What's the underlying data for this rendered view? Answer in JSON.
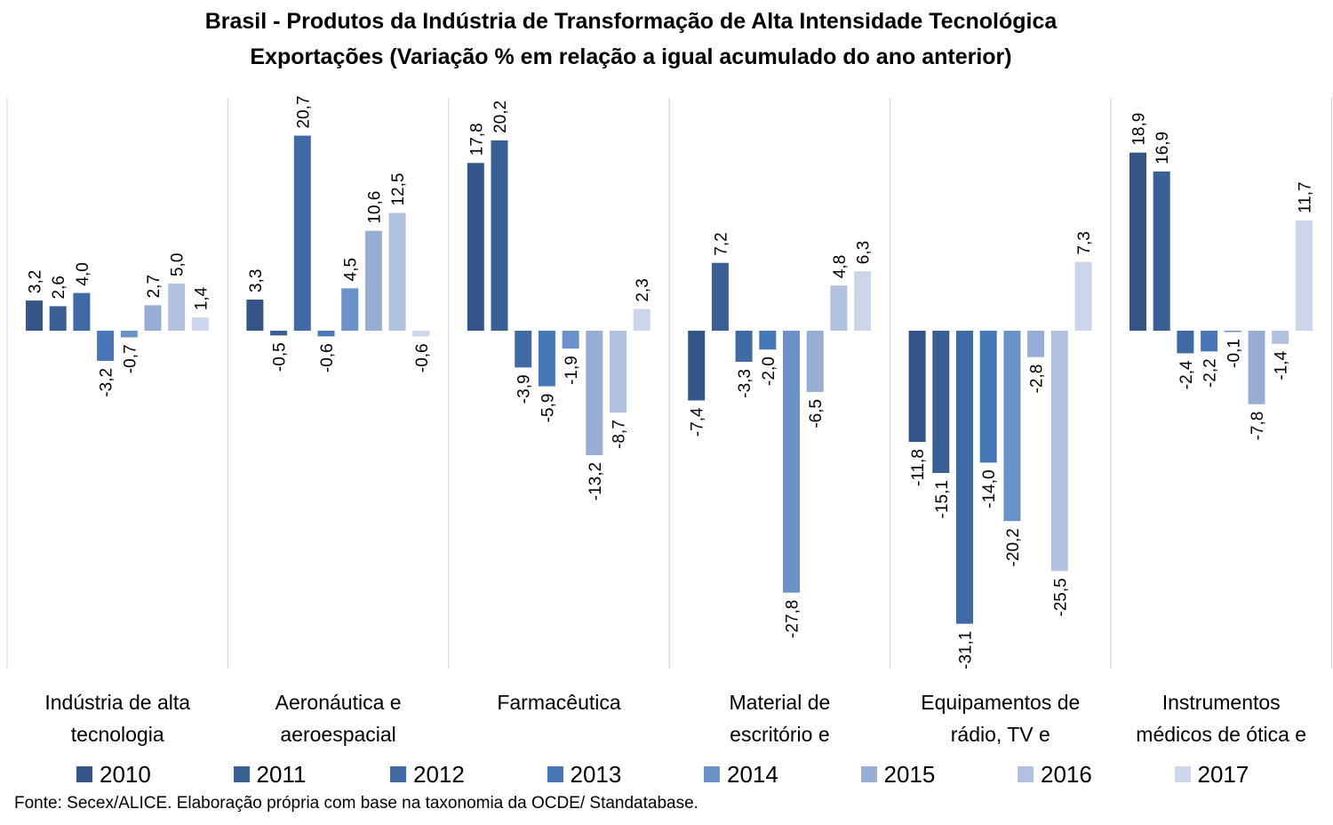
{
  "chart_data": {
    "type": "bar",
    "title": "Brasil - Produtos da Indústria de Transformação de Alta Intensidade Tecnológica",
    "subtitle": "Exportações (Variação % em relação a igual acumulado do ano anterior)",
    "categories": [
      [
        "Indústria de alta",
        "tecnologia"
      ],
      [
        "Aeronáutica e",
        "aeroespacial"
      ],
      [
        "Farmacêutica"
      ],
      [
        "Material de",
        "escritório e"
      ],
      [
        "Equipamentos de",
        "rádio, TV e"
      ],
      [
        "Instrumentos",
        "médicos de ótica e"
      ]
    ],
    "series": [
      {
        "name": "2010",
        "color": "#345587",
        "values": [
          3.2,
          3.3,
          17.8,
          -7.4,
          -11.8,
          18.9
        ]
      },
      {
        "name": "2011",
        "color": "#3a5f95",
        "values": [
          2.6,
          -0.5,
          20.2,
          7.2,
          -15.1,
          16.9
        ]
      },
      {
        "name": "2012",
        "color": "#3f6aa4",
        "values": [
          4.0,
          20.7,
          -3.9,
          -3.3,
          -31.1,
          -2.4
        ]
      },
      {
        "name": "2013",
        "color": "#4877b8",
        "values": [
          -3.2,
          -0.6,
          -5.9,
          -2.0,
          -14.0,
          -2.2
        ]
      },
      {
        "name": "2014",
        "color": "#6b93c9",
        "values": [
          -0.7,
          4.5,
          -1.9,
          -27.8,
          -20.2,
          -0.1
        ]
      },
      {
        "name": "2015",
        "color": "#97add3",
        "values": [
          2.7,
          10.6,
          -13.2,
          -6.5,
          -2.8,
          -7.8
        ]
      },
      {
        "name": "2016",
        "color": "#b3c1e0",
        "values": [
          5.0,
          12.5,
          -8.7,
          4.8,
          -25.5,
          -1.4
        ]
      },
      {
        "name": "2017",
        "color": "#cdd5ea",
        "values": [
          1.4,
          -0.6,
          2.3,
          6.3,
          7.3,
          11.7
        ]
      }
    ],
    "value_labels": [
      [
        "3,2",
        "3,3",
        "17,8",
        "-7,4",
        "-11,8",
        "18,9"
      ],
      [
        "2,6",
        "-0,5",
        "20,2",
        "7,2",
        "-15,1",
        "16,9"
      ],
      [
        "4,0",
        "20,7",
        "-3,9",
        "-3,3",
        "-31,1",
        "-2,4"
      ],
      [
        "-3,2",
        "-0,6",
        "-5,9",
        "-2,0",
        "-14,0",
        "-2,2"
      ],
      [
        "-0,7",
        "4,5",
        "-1,9",
        "-27,8",
        "-20,2",
        "-0,1"
      ],
      [
        "2,7",
        "10,6",
        "-13,2",
        "-6,5",
        "-2,8",
        "-7,8"
      ],
      [
        "5,0",
        "12,5",
        "-8,7",
        "4,8",
        "-25,5",
        "-1,4"
      ],
      [
        "1,4",
        "-0,6",
        "2,3",
        "6,3",
        "7,3",
        "11,7"
      ]
    ],
    "legend_position": "bottom",
    "grid": false,
    "source": "Fonte: Secex/ALICE. Elaboração própria com base na taxonomia da OCDE/ Standatabase."
  }
}
